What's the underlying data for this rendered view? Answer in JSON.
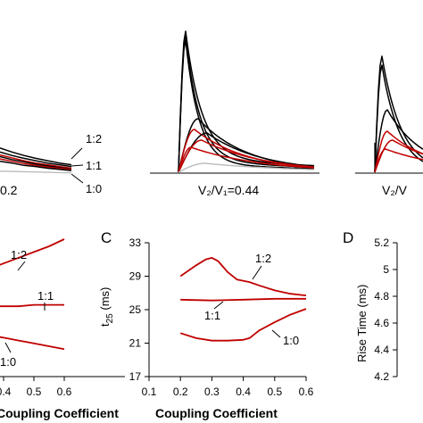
{
  "chart_data": [
    {
      "panel": "top-left",
      "type": "line",
      "xlabel": "",
      "ylabel": "",
      "annotation_suffix": "0.2",
      "curve_labels": [
        "1:2",
        "1:1",
        "1:0"
      ],
      "series": [
        {
          "color": "#000000",
          "y": [
            0.45,
            0.38,
            0.32,
            0.27,
            0.23,
            0.19,
            0.16
          ]
        },
        {
          "color": "#000000",
          "y": [
            0.38,
            0.32,
            0.27,
            0.23,
            0.19,
            0.16,
            0.13
          ]
        },
        {
          "color": "#c00000",
          "y": [
            0.33,
            0.28,
            0.23,
            0.19,
            0.16,
            0.13,
            0.1
          ]
        },
        {
          "color": "#000000",
          "y": [
            0.3,
            0.25,
            0.21,
            0.17,
            0.14,
            0.11,
            0.09
          ]
        },
        {
          "color": "#c00000",
          "y": [
            0.26,
            0.22,
            0.18,
            0.15,
            0.12,
            0.1,
            0.08
          ]
        },
        {
          "color": "#000000",
          "y": [
            0.22,
            0.19,
            0.15,
            0.13,
            0.1,
            0.08,
            0.06
          ]
        },
        {
          "color": "#bbbbbb",
          "y": [
            0.05,
            0.045,
            0.04,
            0.035,
            0.03,
            0.025,
            0.02
          ]
        }
      ]
    },
    {
      "panel": "top-middle",
      "type": "line",
      "annotation": "V₂/V₁=0.44",
      "note": "Peak-shaped traces decaying toward baseline"
    },
    {
      "panel": "top-right",
      "type": "line",
      "annotation": "V₂/V"
    },
    {
      "panel": "B",
      "type": "line",
      "xlabel": "Coupling Coefficient",
      "x_ticks": [
        0.4,
        0.5,
        0.6
      ],
      "curve_labels": [
        "1:2",
        "1:1",
        "1:0"
      ],
      "x": [
        0.2,
        0.25,
        0.3,
        0.35,
        0.4,
        0.45,
        0.5,
        0.55,
        0.6
      ],
      "series": [
        {
          "name": "1:2",
          "color": "#c00000",
          "y": [
            0.62,
            0.66,
            0.7,
            0.74,
            0.78,
            0.82,
            0.86,
            0.9,
            0.95
          ]
        },
        {
          "name": "1:1",
          "color": "#c00000",
          "y": [
            0.48,
            0.48,
            0.48,
            0.48,
            0.48,
            0.48,
            0.49,
            0.49,
            0.49
          ]
        },
        {
          "name": "1:0",
          "color": "#c00000",
          "y": [
            0.32,
            0.31,
            0.3,
            0.28,
            0.26,
            0.24,
            0.22,
            0.2,
            0.18
          ]
        }
      ]
    },
    {
      "panel": "C",
      "panel_label": "C",
      "type": "line",
      "xlabel": "Coupling Coefficient",
      "ylabel_main": "t",
      "ylabel_sub": "25",
      "ylabel_rest": " (ms)",
      "xlim": [
        0.1,
        0.6
      ],
      "ylim": [
        17,
        33
      ],
      "x_ticks": [
        0.1,
        0.2,
        0.3,
        0.4,
        0.5,
        0.6
      ],
      "y_ticks": [
        17,
        21,
        25,
        29,
        33
      ],
      "curve_labels": [
        "1:2",
        "1:1",
        "1:0"
      ],
      "series": [
        {
          "name": "1:2",
          "color": "#c00000",
          "x": [
            0.2,
            0.25,
            0.28,
            0.3,
            0.32,
            0.35,
            0.38,
            0.42,
            0.45,
            0.5,
            0.55,
            0.6
          ],
          "y": [
            29.0,
            30.3,
            31.0,
            31.2,
            30.8,
            29.5,
            28.6,
            28.3,
            27.9,
            27.3,
            26.9,
            26.7
          ]
        },
        {
          "name": "1:1",
          "color": "#c00000",
          "x": [
            0.2,
            0.3,
            0.4,
            0.5,
            0.6
          ],
          "y": [
            26.2,
            26.1,
            26.2,
            26.3,
            26.3
          ]
        },
        {
          "name": "1:0",
          "color": "#c00000",
          "x": [
            0.2,
            0.25,
            0.3,
            0.35,
            0.4,
            0.42,
            0.45,
            0.5,
            0.55,
            0.6
          ],
          "y": [
            22.2,
            21.6,
            21.3,
            21.3,
            21.4,
            21.6,
            22.5,
            23.5,
            24.4,
            25.1
          ]
        }
      ]
    },
    {
      "panel": "D",
      "panel_label": "D",
      "type": "line",
      "ylabel": "Rise Time (ms)",
      "ylim": [
        4.2,
        5.2
      ],
      "y_ticks": [
        "4.2",
        "4.4",
        "4.6",
        "4.8",
        "5",
        "5.2"
      ]
    }
  ]
}
